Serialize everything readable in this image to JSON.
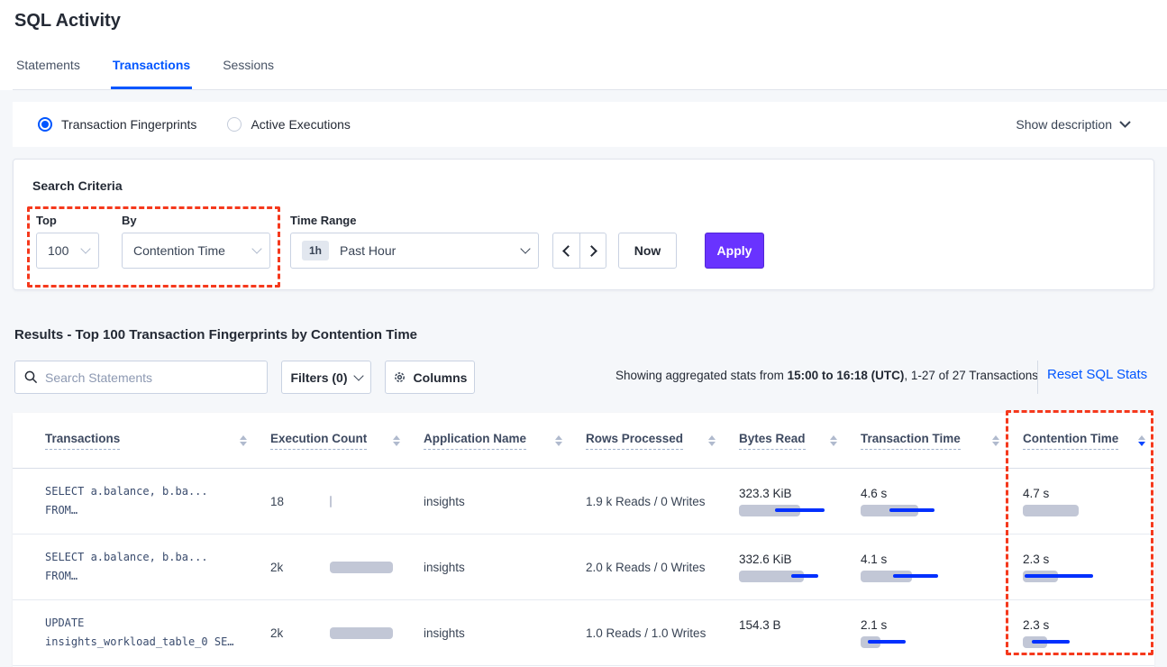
{
  "page": {
    "title": "SQL Activity"
  },
  "tabs": [
    {
      "label": "Statements"
    },
    {
      "label": "Transactions"
    },
    {
      "label": "Sessions"
    }
  ],
  "view_toggle": {
    "options": [
      {
        "label": "Transaction Fingerprints",
        "selected": true
      },
      {
        "label": "Active Executions",
        "selected": false
      }
    ],
    "show_description": "Show description"
  },
  "search_criteria": {
    "title": "Search Criteria",
    "top": {
      "label": "Top",
      "value": "100"
    },
    "by": {
      "label": "By",
      "value": "Contention Time"
    },
    "time_range": {
      "label": "Time Range",
      "badge": "1h",
      "value": "Past Hour"
    },
    "now_label": "Now",
    "apply_label": "Apply"
  },
  "results": {
    "heading": "Results - Top 100 Transaction Fingerprints by Contention Time",
    "search_placeholder": "Search Statements",
    "filters_label": "Filters (0)",
    "columns_label": "Columns",
    "stats_prefix": "Showing aggregated stats from ",
    "stats_bold": "15:00 to 16:18 (UTC)",
    "stats_suffix": ", 1-27 of 27 Transactions",
    "reset_label": "Reset SQL Stats"
  },
  "table": {
    "columns": [
      {
        "label": "Transactions",
        "sorted": null
      },
      {
        "label": "Execution Count",
        "sorted": null
      },
      {
        "label": "Application Name",
        "sorted": null
      },
      {
        "label": "Rows Processed",
        "sorted": null
      },
      {
        "label": "Bytes Read",
        "sorted": null
      },
      {
        "label": "Transaction Time",
        "sorted": null
      },
      {
        "label": "Contention Time",
        "sorted": "desc"
      }
    ],
    "rows": [
      {
        "transaction_line1": "SELECT a.balance, b.ba...",
        "transaction_line2": "FROM…",
        "execution": {
          "count": "18",
          "viz": {
            "bar": 2,
            "line": null
          }
        },
        "application_name": "insights",
        "rows_processed": "1.9 k Reads / 0 Writes",
        "bytes_read": {
          "value": "323.3 KiB",
          "viz": {
            "bar": 68,
            "line": [
              40,
              95
            ]
          }
        },
        "transaction_time": {
          "value": "4.6 s",
          "viz": {
            "bar": 64,
            "line": [
              32,
              82
            ]
          }
        },
        "contention_time": {
          "value": "4.7 s",
          "viz": {
            "bar": 62,
            "line": null
          }
        }
      },
      {
        "transaction_line1": "SELECT a.balance, b.ba...",
        "transaction_line2": "FROM…",
        "execution": {
          "count": "2k",
          "viz": {
            "bar": 70,
            "line": null
          }
        },
        "application_name": "insights",
        "rows_processed": "2.0 k Reads / 0 Writes",
        "bytes_read": {
          "value": "332.6 KiB",
          "viz": {
            "bar": 72,
            "line": [
              58,
              88
            ]
          }
        },
        "transaction_time": {
          "value": "4.1 s",
          "viz": {
            "bar": 57,
            "line": [
              36,
              86
            ]
          }
        },
        "contention_time": {
          "value": "2.3 s",
          "viz": {
            "bar": 39,
            "line": [
              2,
              78
            ]
          }
        }
      },
      {
        "transaction_line1": "UPDATE",
        "transaction_line2": "insights_workload_table_0 SE…",
        "execution": {
          "count": "2k",
          "viz": {
            "bar": 70,
            "line": null
          }
        },
        "application_name": "insights",
        "rows_processed": "1.0 Reads / 1.0 Writes",
        "bytes_read": {
          "value": "154.3 B",
          "viz": null
        },
        "transaction_time": {
          "value": "2.1 s",
          "viz": {
            "bar": 22,
            "line": [
              8,
              50
            ]
          }
        },
        "contention_time": {
          "value": "2.3 s",
          "viz": {
            "bar": 27,
            "line": [
              10,
              52
            ]
          }
        }
      }
    ]
  },
  "annotation": {
    "color": "#f5391d"
  }
}
